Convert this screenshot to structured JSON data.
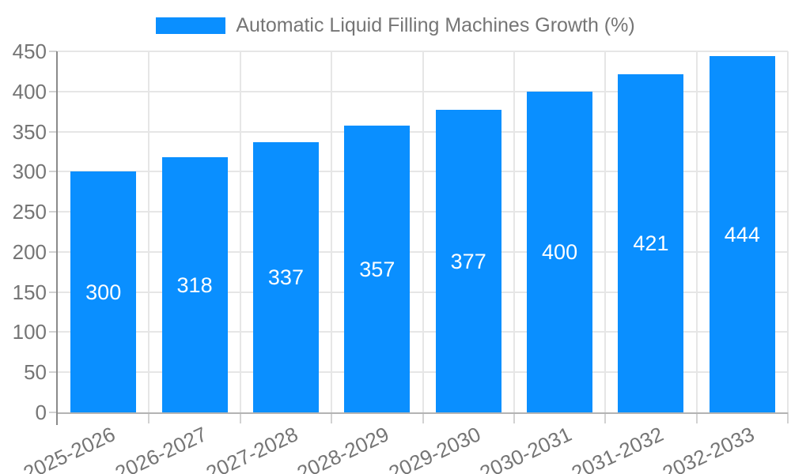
{
  "chart_data": {
    "type": "bar",
    "title": "Automatic Liquid Filling Machines Growth (%)",
    "categories": [
      "2025-2026",
      "2026-2027",
      "2027-2028",
      "2028-2029",
      "2029-2030",
      "2030-2031",
      "2031-2032",
      "2032-2033"
    ],
    "series": [
      {
        "name": "Automatic Liquid Filling Machines Growth (%)",
        "values": [
          300,
          318,
          337,
          357,
          377,
          400,
          421,
          444
        ]
      }
    ],
    "xlabel": "",
    "ylabel": "",
    "ylim": [
      0,
      450
    ],
    "yticks": [
      0,
      50,
      100,
      150,
      200,
      250,
      300,
      350,
      400,
      450
    ],
    "grid": "on",
    "legend_position": "top-center",
    "value_labels": "centered-inside-bars",
    "colors": {
      "bar": "#0a8fff",
      "value_label": "#ffffff",
      "axis_text": "#757575",
      "gridline": "#e6e6e6",
      "y_axis_line": "#8a8a8a",
      "x_axis_line": "#b3b3b3"
    }
  }
}
